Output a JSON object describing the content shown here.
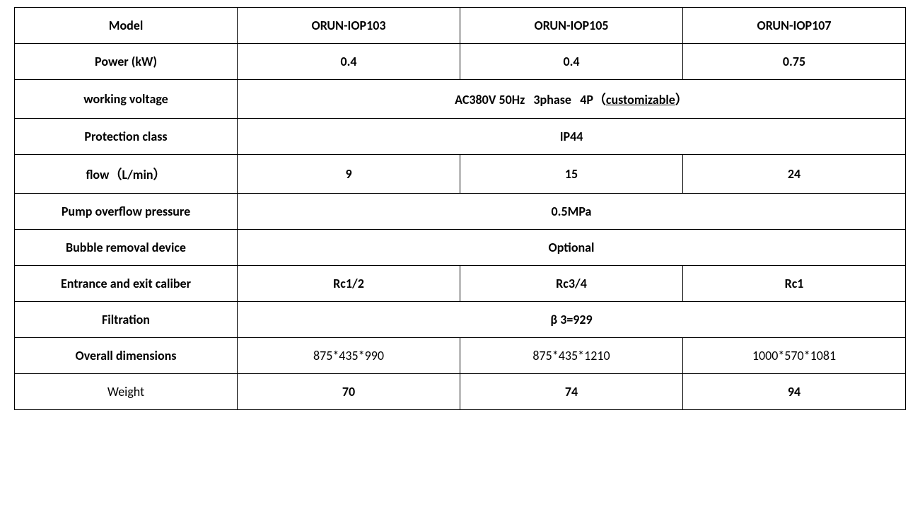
{
  "table": {
    "headers": {
      "label": "Model",
      "col1": "ORUN-IOP103",
      "col2": "ORUN-IOP105",
      "col3": "ORUN-IOP107"
    },
    "rows": [
      {
        "label": "Power (kW)",
        "label_bold": true,
        "cells": [
          "0.4",
          "0.4",
          "0.75"
        ],
        "cells_bold": true,
        "merged": false
      },
      {
        "label": "working voltage",
        "label_bold": true,
        "merged": true,
        "merged_prefix": "AC380V 50Hz   3phase   4P（",
        "merged_underline": "customizable",
        "merged_suffix": "）",
        "merged_bold": true
      },
      {
        "label": "Protection class",
        "label_bold": true,
        "merged": true,
        "merged_text": "IP44",
        "merged_bold": true
      },
      {
        "label": "flow（L/min）",
        "label_bold": true,
        "cells": [
          "9",
          "15",
          "24"
        ],
        "cells_bold": true,
        "merged": false
      },
      {
        "label": "Pump overflow pressure",
        "label_bold": true,
        "merged": true,
        "merged_text": "0.5MPa",
        "merged_bold": true
      },
      {
        "label": "Bubble removal device",
        "label_bold": true,
        "merged": true,
        "merged_text": "Optional",
        "merged_bold": true
      },
      {
        "label": "Entrance and exit caliber",
        "label_bold": true,
        "cells": [
          "Rc1/2",
          "Rc3/4",
          "Rc1"
        ],
        "cells_bold": true,
        "merged": false
      },
      {
        "label": "Filtration",
        "label_bold": true,
        "merged": true,
        "merged_text": "β 3=929",
        "merged_bold": true
      },
      {
        "label": "Overall dimensions",
        "label_bold": true,
        "cells": [
          "875*435*990",
          "875*435*1210",
          "1000*570*1081"
        ],
        "cells_bold": false,
        "merged": false
      },
      {
        "label": "Weight",
        "label_bold": false,
        "cells": [
          "70",
          "74",
          "94"
        ],
        "cells_bold": true,
        "merged": false
      }
    ]
  },
  "styling": {
    "border_color": "#000000",
    "background_color": "#ffffff",
    "text_color": "#000000",
    "font_family": "Calibri, Arial, sans-serif",
    "cell_fontsize": 18,
    "border_width": 1.5
  }
}
